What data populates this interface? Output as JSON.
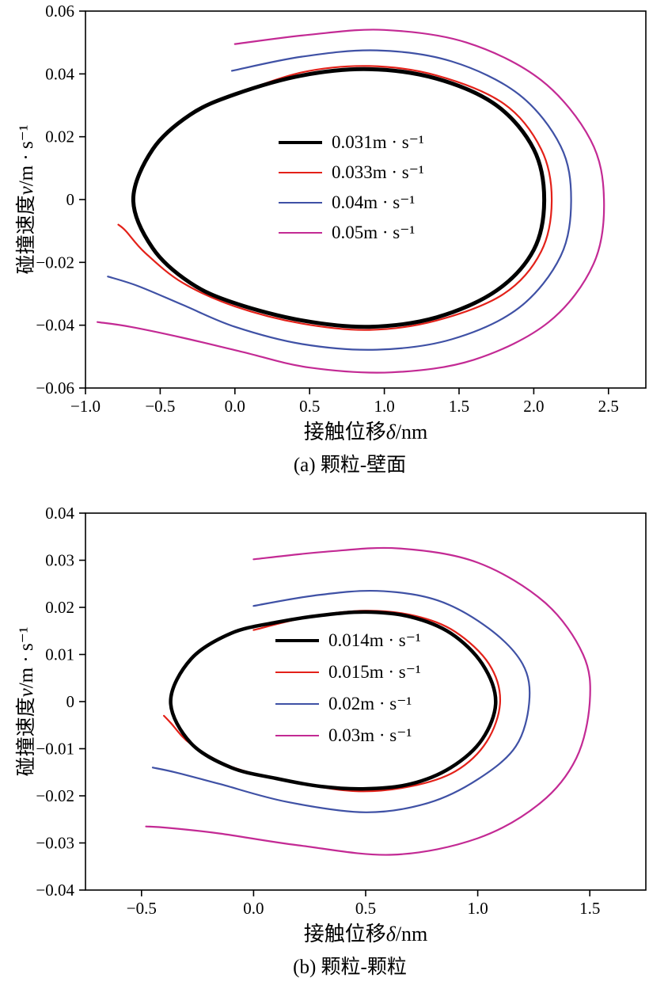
{
  "chart_data": [
    {
      "type": "line",
      "caption": "(a) 颗粒-壁面",
      "xlabel_prefix": "接触位移",
      "xlabel_var": "δ",
      "xlabel_unit": "/nm",
      "ylabel_prefix": "碰撞速度",
      "ylabel_var": "v",
      "ylabel_unit": "/m · s⁻¹",
      "xlim": [
        -1.0,
        2.75
      ],
      "ylim": [
        -0.06,
        0.06
      ],
      "grid": false,
      "legend_position": "inside-center",
      "xticks": [
        {
          "value": -1.0,
          "label": "−1.0"
        },
        {
          "value": -0.5,
          "label": "−0.5"
        },
        {
          "value": 0.0,
          "label": "0.0"
        },
        {
          "value": 0.5,
          "label": "0.5"
        },
        {
          "value": 1.0,
          "label": "1.0"
        },
        {
          "value": 1.5,
          "label": "1.5"
        },
        {
          "value": 2.0,
          "label": "2.0"
        },
        {
          "value": 2.5,
          "label": "2.5"
        }
      ],
      "yticks": [
        {
          "value": 0.06,
          "label": "0.06"
        },
        {
          "value": 0.04,
          "label": "0.04"
        },
        {
          "value": 0.02,
          "label": "0.02"
        },
        {
          "value": 0.0,
          "label": "0"
        },
        {
          "value": -0.02,
          "label": "−0.02"
        },
        {
          "value": -0.04,
          "label": "−0.04"
        },
        {
          "value": -0.06,
          "label": "−0.06"
        }
      ],
      "series": [
        {
          "name": "0.031m · s⁻¹",
          "color": "#000000",
          "width": 5,
          "closed": true,
          "points": [
            [
              -0.68,
              0
            ],
            [
              -0.55,
              0.016
            ],
            [
              -0.3,
              0.027
            ],
            [
              0.0,
              0.0335
            ],
            [
              0.45,
              0.0395
            ],
            [
              0.9,
              0.0415
            ],
            [
              1.35,
              0.0385
            ],
            [
              1.75,
              0.03
            ],
            [
              2.0,
              0.016
            ],
            [
              2.07,
              0
            ],
            [
              2.0,
              -0.016
            ],
            [
              1.75,
              -0.029
            ],
            [
              1.35,
              -0.0375
            ],
            [
              0.9,
              -0.0405
            ],
            [
              0.45,
              -0.0385
            ],
            [
              0.0,
              -0.033
            ],
            [
              -0.3,
              -0.0265
            ],
            [
              -0.55,
              -0.0155
            ]
          ]
        },
        {
          "name": "0.033m · s⁻¹",
          "color": "#e32119",
          "width": 2.2,
          "closed": false,
          "points": [
            [
              0.0,
              0.0335
            ],
            [
              0.45,
              0.0405
            ],
            [
              0.9,
              0.0425
            ],
            [
              1.35,
              0.0395
            ],
            [
              1.8,
              0.0305
            ],
            [
              2.05,
              0.016
            ],
            [
              2.12,
              0
            ],
            [
              2.05,
              -0.0165
            ],
            [
              1.8,
              -0.03
            ],
            [
              1.35,
              -0.0385
            ],
            [
              0.9,
              -0.0415
            ],
            [
              0.45,
              -0.0395
            ],
            [
              0.0,
              -0.034
            ],
            [
              -0.35,
              -0.0265
            ],
            [
              -0.6,
              -0.017
            ],
            [
              -0.73,
              -0.01
            ],
            [
              -0.78,
              -0.008
            ]
          ]
        },
        {
          "name": "0.04m · s⁻¹",
          "color": "#3f51a5",
          "width": 2.2,
          "closed": false,
          "points": [
            [
              -0.02,
              0.041
            ],
            [
              0.45,
              0.0455
            ],
            [
              0.95,
              0.0475
            ],
            [
              1.45,
              0.044
            ],
            [
              1.9,
              0.0335
            ],
            [
              2.18,
              0.017
            ],
            [
              2.25,
              0
            ],
            [
              2.18,
              -0.018
            ],
            [
              1.9,
              -0.0345
            ],
            [
              1.45,
              -0.0445
            ],
            [
              0.95,
              -0.0478
            ],
            [
              0.45,
              -0.046
            ],
            [
              0.0,
              -0.0405
            ],
            [
              -0.35,
              -0.0335
            ],
            [
              -0.65,
              -0.0275
            ],
            [
              -0.85,
              -0.0245
            ]
          ]
        },
        {
          "name": "0.05m · s⁻¹",
          "color": "#c32a94",
          "width": 2.2,
          "closed": false,
          "points": [
            [
              0.0,
              0.0495
            ],
            [
              0.5,
              0.0525
            ],
            [
              1.0,
              0.054
            ],
            [
              1.55,
              0.05
            ],
            [
              2.05,
              0.038
            ],
            [
              2.38,
              0.019
            ],
            [
              2.47,
              0
            ],
            [
              2.4,
              -0.0205
            ],
            [
              2.1,
              -0.039
            ],
            [
              1.6,
              -0.051
            ],
            [
              1.05,
              -0.055
            ],
            [
              0.5,
              -0.0535
            ],
            [
              0.05,
              -0.0485
            ],
            [
              -0.35,
              -0.044
            ],
            [
              -0.7,
              -0.0405
            ],
            [
              -0.92,
              -0.039
            ]
          ]
        }
      ]
    },
    {
      "type": "line",
      "caption": "(b) 颗粒-颗粒",
      "xlabel_prefix": "接触位移",
      "xlabel_var": "δ",
      "xlabel_unit": "/nm",
      "ylabel_prefix": "碰撞速度",
      "ylabel_var": "v",
      "ylabel_unit": "/m · s⁻¹",
      "xlim": [
        -0.75,
        1.75
      ],
      "ylim": [
        -0.04,
        0.04
      ],
      "grid": false,
      "legend_position": "inside-center",
      "xticks": [
        {
          "value": -0.5,
          "label": "−0.5"
        },
        {
          "value": 0.0,
          "label": "0.0"
        },
        {
          "value": 0.5,
          "label": "0.5"
        },
        {
          "value": 1.0,
          "label": "1.0"
        },
        {
          "value": 1.5,
          "label": "1.5"
        }
      ],
      "yticks": [
        {
          "value": 0.04,
          "label": "0.04"
        },
        {
          "value": 0.03,
          "label": "0.03"
        },
        {
          "value": 0.02,
          "label": "0.02"
        },
        {
          "value": 0.01,
          "label": "0.01"
        },
        {
          "value": 0.0,
          "label": "0"
        },
        {
          "value": -0.01,
          "label": "−0.01"
        },
        {
          "value": -0.02,
          "label": "−0.02"
        },
        {
          "value": -0.03,
          "label": "−0.03"
        },
        {
          "value": -0.04,
          "label": "−0.04"
        }
      ],
      "series": [
        {
          "name": "0.014m · s⁻¹",
          "color": "#000000",
          "width": 4.5,
          "closed": true,
          "points": [
            [
              -0.37,
              0
            ],
            [
              -0.28,
              0.009
            ],
            [
              -0.1,
              0.0145
            ],
            [
              0.1,
              0.0168
            ],
            [
              0.3,
              0.0183
            ],
            [
              0.5,
              0.019
            ],
            [
              0.7,
              0.018
            ],
            [
              0.88,
              0.0145
            ],
            [
              1.02,
              0.008
            ],
            [
              1.08,
              0
            ],
            [
              1.02,
              -0.008
            ],
            [
              0.88,
              -0.014
            ],
            [
              0.7,
              -0.0175
            ],
            [
              0.5,
              -0.0185
            ],
            [
              0.3,
              -0.018
            ],
            [
              0.1,
              -0.0163
            ],
            [
              -0.1,
              -0.014
            ],
            [
              -0.28,
              -0.0088
            ]
          ]
        },
        {
          "name": "0.015m · s⁻¹",
          "color": "#e32119",
          "width": 2.2,
          "closed": false,
          "points": [
            [
              0.0,
              0.0152
            ],
            [
              0.25,
              0.018
            ],
            [
              0.5,
              0.0193
            ],
            [
              0.72,
              0.0182
            ],
            [
              0.9,
              0.0148
            ],
            [
              1.05,
              0.008
            ],
            [
              1.1,
              0
            ],
            [
              1.04,
              -0.0085
            ],
            [
              0.9,
              -0.0148
            ],
            [
              0.7,
              -0.018
            ],
            [
              0.45,
              -0.019
            ],
            [
              0.15,
              -0.0168
            ],
            [
              -0.1,
              -0.0138
            ],
            [
              -0.28,
              -0.009
            ],
            [
              -0.37,
              -0.0045
            ],
            [
              -0.4,
              -0.003
            ]
          ]
        },
        {
          "name": "0.02m · s⁻¹",
          "color": "#3f51a5",
          "width": 2.2,
          "closed": false,
          "points": [
            [
              0.0,
              0.0203
            ],
            [
              0.27,
              0.0225
            ],
            [
              0.55,
              0.0235
            ],
            [
              0.82,
              0.0215
            ],
            [
              1.05,
              0.0155
            ],
            [
              1.2,
              0.008
            ],
            [
              1.23,
              0
            ],
            [
              1.17,
              -0.0095
            ],
            [
              1.0,
              -0.0165
            ],
            [
              0.78,
              -0.0215
            ],
            [
              0.5,
              -0.0235
            ],
            [
              0.15,
              -0.0213
            ],
            [
              -0.15,
              -0.0175
            ],
            [
              -0.35,
              -0.015
            ],
            [
              -0.45,
              -0.014
            ]
          ]
        },
        {
          "name": "0.03m · s⁻¹",
          "color": "#c32a94",
          "width": 2.2,
          "closed": false,
          "points": [
            [
              0.0,
              0.0302
            ],
            [
              0.32,
              0.0318
            ],
            [
              0.65,
              0.0325
            ],
            [
              1.0,
              0.0295
            ],
            [
              1.3,
              0.021
            ],
            [
              1.47,
              0.01
            ],
            [
              1.5,
              0
            ],
            [
              1.44,
              -0.012
            ],
            [
              1.28,
              -0.0215
            ],
            [
              1.0,
              -0.029
            ],
            [
              0.62,
              -0.0325
            ],
            [
              0.2,
              -0.0305
            ],
            [
              -0.15,
              -0.028
            ],
            [
              -0.38,
              -0.0268
            ],
            [
              -0.48,
              -0.0265
            ]
          ]
        }
      ]
    }
  ]
}
